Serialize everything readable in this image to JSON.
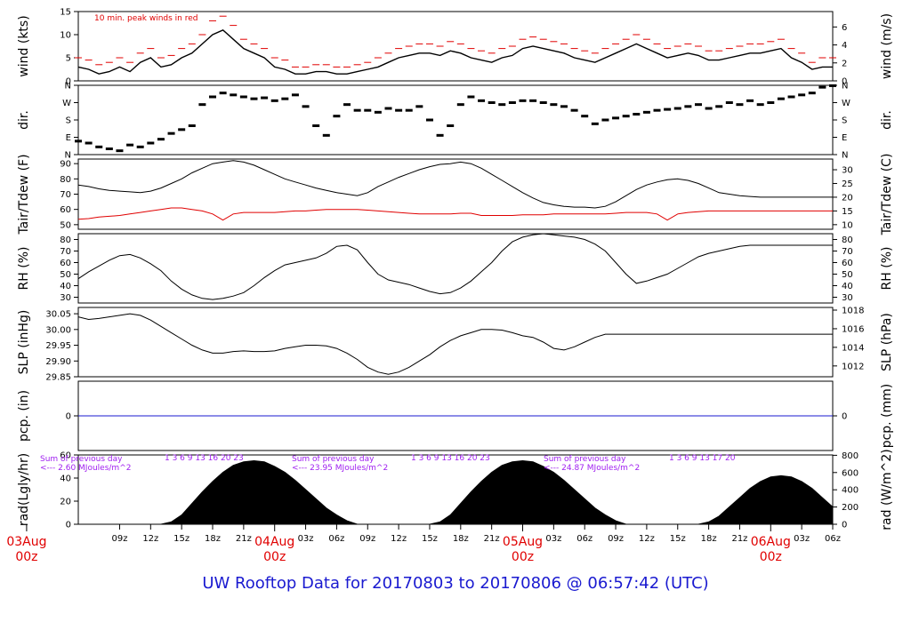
{
  "title": "UW Rooftop Data for 20170803  to  20170806 @ 06:57:42  (UTC)",
  "colors": {
    "trace": "#000000",
    "peak": "#e00000",
    "dew": "#e00000",
    "precip": "#1a1ad0",
    "rad_note": "#a020f0",
    "footer": "#1a1ad0",
    "date": "#e00000"
  },
  "x_axis": {
    "start_hour": 5,
    "end_hour": 78,
    "ticks": [
      "09z",
      "12z",
      "15z",
      "18z",
      "21z",
      "03z",
      "06z",
      "09z",
      "12z",
      "15z",
      "18z",
      "21z",
      "03z",
      "06z",
      "09z",
      "12z",
      "15z",
      "18z",
      "21z",
      "03z",
      "06z"
    ],
    "day_labels": [
      {
        "date": "03Aug",
        "zulu": "00z"
      },
      {
        "date": "04Aug",
        "zulu": "00z"
      },
      {
        "date": "05Aug",
        "zulu": "00z"
      },
      {
        "date": "06Aug",
        "zulu": "00z"
      }
    ]
  },
  "chart_data": [
    {
      "type": "line",
      "panel": "wind",
      "ylabel": "wind (kts)",
      "ylabel_right": "wind (m/s)",
      "ylim": [
        0,
        15
      ],
      "yticks": [
        "0",
        "5",
        "10",
        "15"
      ],
      "yticks_right": [
        "0",
        "2",
        "4",
        "6"
      ],
      "annotation": "10 min. peak winds in red",
      "x": [
        5,
        6,
        7,
        8,
        9,
        10,
        11,
        12,
        13,
        14,
        15,
        16,
        17,
        18,
        19,
        20,
        21,
        22,
        23,
        24,
        25,
        26,
        27,
        28,
        29,
        30,
        31,
        32,
        33,
        34,
        35,
        36,
        37,
        38,
        39,
        40,
        41,
        42,
        43,
        44,
        45,
        46,
        47,
        48,
        49,
        50,
        51,
        52,
        53,
        54,
        55,
        56,
        57,
        58,
        59,
        60,
        61,
        62,
        63,
        64,
        65,
        66,
        67,
        68,
        69,
        70,
        71,
        72,
        73,
        74,
        75,
        76,
        77,
        78
      ],
      "series": [
        {
          "name": "wind",
          "values": [
            3,
            2.5,
            1.5,
            2,
            3,
            2,
            4,
            5,
            3,
            3.5,
            5,
            6,
            8,
            10,
            11,
            9,
            7,
            6,
            5,
            3,
            2.5,
            1.5,
            1.5,
            2,
            2,
            1.5,
            1.5,
            2,
            2.5,
            3,
            4,
            5,
            5.5,
            6,
            6,
            5.5,
            6.5,
            6,
            5,
            4.5,
            4,
            5,
            5.5,
            7,
            7.5,
            7,
            6.5,
            6,
            5,
            4.5,
            4,
            5,
            6,
            7,
            8,
            7,
            6,
            5,
            5.5,
            6,
            5.5,
            4.5,
            4.5,
            5,
            5.5,
            6,
            6,
            6.5,
            7,
            5,
            4,
            2.5,
            3,
            3
          ]
        },
        {
          "name": "10 min. peak winds in red",
          "values": [
            5,
            4.5,
            3.5,
            4,
            5,
            4,
            6,
            7,
            5,
            5.5,
            7,
            8,
            10,
            13,
            14,
            12,
            9,
            8,
            7,
            5,
            4.5,
            3,
            3,
            3.5,
            3.5,
            3,
            3,
            3.5,
            4,
            5,
            6,
            7,
            7.5,
            8,
            8,
            7.5,
            8.5,
            8,
            7,
            6.5,
            6,
            7,
            7.5,
            9,
            9.5,
            9,
            8.5,
            8,
            7,
            6.5,
            6,
            7,
            8,
            9,
            10,
            9,
            8,
            7,
            7.5,
            8,
            7.5,
            6.5,
            6.5,
            7,
            7.5,
            8,
            8,
            8.5,
            9,
            7,
            6,
            4,
            5,
            5
          ]
        }
      ]
    },
    {
      "type": "scatter",
      "panel": "dir",
      "ylabel": "dir.",
      "ylabel_right": "dir.",
      "ylim": [
        0,
        360
      ],
      "yticks": [
        "N",
        "E",
        "S",
        "W",
        "N"
      ],
      "yticks_right": [
        "N",
        "E",
        "S",
        "W",
        "N"
      ],
      "x": [
        5,
        6,
        7,
        8,
        9,
        10,
        11,
        12,
        13,
        14,
        15,
        16,
        17,
        18,
        19,
        20,
        21,
        22,
        23,
        24,
        25,
        26,
        27,
        28,
        29,
        30,
        31,
        32,
        33,
        34,
        35,
        36,
        37,
        38,
        39,
        40,
        41,
        42,
        43,
        44,
        45,
        46,
        47,
        48,
        49,
        50,
        51,
        52,
        53,
        54,
        55,
        56,
        57,
        58,
        59,
        60,
        61,
        62,
        63,
        64,
        65,
        66,
        67,
        68,
        69,
        70,
        71,
        72,
        73,
        74,
        75,
        76,
        77,
        78
      ],
      "values": [
        70,
        60,
        40,
        30,
        20,
        50,
        40,
        60,
        80,
        110,
        130,
        150,
        260,
        300,
        320,
        310,
        300,
        290,
        295,
        280,
        290,
        310,
        250,
        150,
        100,
        200,
        260,
        230,
        230,
        220,
        240,
        230,
        230,
        250,
        180,
        100,
        150,
        260,
        300,
        280,
        270,
        260,
        270,
        280,
        280,
        270,
        260,
        250,
        230,
        200,
        160,
        180,
        190,
        200,
        210,
        220,
        230,
        235,
        240,
        250,
        260,
        240,
        250,
        270,
        260,
        280,
        260,
        270,
        290,
        300,
        310,
        320,
        350,
        358
      ]
    },
    {
      "type": "line",
      "panel": "temp",
      "ylabel": "Tair/Tdew (F)",
      "ylabel_right": "Tair/Tdew (C)",
      "ylim": [
        47,
        93
      ],
      "yticks": [
        "50",
        "60",
        "70",
        "80",
        "90"
      ],
      "yticks_right": [
        "10",
        "15",
        "20",
        "25",
        "30"
      ],
      "x": [
        5,
        6,
        7,
        8,
        9,
        10,
        11,
        12,
        13,
        14,
        15,
        16,
        17,
        18,
        19,
        20,
        21,
        22,
        23,
        24,
        25,
        26,
        27,
        28,
        29,
        30,
        31,
        32,
        33,
        34,
        35,
        36,
        37,
        38,
        39,
        40,
        41,
        42,
        43,
        44,
        45,
        46,
        47,
        48,
        49,
        50,
        51,
        52,
        53,
        54,
        55,
        56,
        57,
        58,
        59,
        60,
        61,
        62,
        63,
        64,
        65,
        66,
        67,
        68,
        69,
        70,
        71,
        72,
        73,
        74,
        75,
        76,
        77,
        78
      ],
      "series": [
        {
          "name": "Tair",
          "values": [
            76,
            75,
            73.5,
            72.5,
            72,
            71.5,
            71,
            72,
            74,
            77,
            80,
            84,
            87,
            90,
            91,
            92,
            91,
            89,
            86,
            83,
            80,
            78,
            76,
            74,
            72.5,
            71,
            70,
            69,
            71,
            75,
            78,
            81,
            83.5,
            86,
            88,
            89.5,
            90,
            91,
            90,
            87,
            83,
            79,
            75,
            71,
            67.5,
            64.5,
            63,
            62,
            61.5,
            61.5,
            61,
            62,
            65,
            69,
            73,
            76,
            78,
            79.5,
            80,
            79,
            77,
            74,
            71,
            70,
            69,
            68.5,
            68,
            68,
            68,
            68,
            68,
            68,
            68,
            68
          ]
        },
        {
          "name": "Tdew",
          "values": [
            53.5,
            54,
            55,
            55.5,
            56,
            57,
            58,
            59,
            60,
            61,
            61,
            60,
            59,
            57,
            53,
            57,
            58,
            58,
            58,
            58,
            58.5,
            59,
            59,
            59.5,
            60,
            60,
            60,
            60,
            59.5,
            59,
            58.5,
            58,
            57.5,
            57,
            57,
            57,
            57,
            57.5,
            57.5,
            56,
            56,
            56,
            56,
            56.5,
            56.5,
            56.5,
            57,
            57,
            57,
            57,
            57,
            57,
            57.5,
            58,
            58,
            58,
            57,
            53,
            57,
            58,
            58.5,
            59,
            59,
            59,
            59,
            59,
            59,
            59,
            59,
            59,
            59,
            59,
            59,
            59
          ]
        }
      ]
    },
    {
      "type": "line",
      "panel": "rh",
      "ylabel": "RH (%)",
      "ylabel_right": "RH (%)",
      "ylim": [
        25,
        85
      ],
      "yticks": [
        "30",
        "40",
        "50",
        "60",
        "70",
        "80"
      ],
      "yticks_right": [
        "30",
        "40",
        "50",
        "60",
        "70",
        "80"
      ],
      "x": [
        5,
        6,
        7,
        8,
        9,
        10,
        11,
        12,
        13,
        14,
        15,
        16,
        17,
        18,
        19,
        20,
        21,
        22,
        23,
        24,
        25,
        26,
        27,
        28,
        29,
        30,
        31,
        32,
        33,
        34,
        35,
        36,
        37,
        38,
        39,
        40,
        41,
        42,
        43,
        44,
        45,
        46,
        47,
        48,
        49,
        50,
        51,
        52,
        53,
        54,
        55,
        56,
        57,
        58,
        59,
        60,
        61,
        62,
        63,
        64,
        65,
        66,
        67,
        68,
        69,
        70,
        71,
        72,
        73,
        74,
        75,
        76,
        77,
        78
      ],
      "values": [
        46,
        52,
        57,
        62,
        66,
        67,
        64,
        59,
        53,
        44,
        37,
        32,
        29,
        28,
        29,
        31,
        34,
        40,
        47,
        53,
        58,
        60,
        62,
        64,
        68,
        74,
        75,
        71,
        60,
        50,
        45,
        43,
        41,
        38,
        35,
        33,
        34,
        38,
        44,
        52,
        60,
        70,
        78,
        82,
        84,
        85,
        84,
        83,
        82,
        80,
        76,
        70,
        60,
        50,
        42,
        44,
        47,
        50,
        55,
        60,
        65,
        68,
        70,
        72,
        74,
        75,
        75,
        75,
        75,
        75,
        75,
        75,
        75,
        75
      ]
    },
    {
      "type": "line",
      "panel": "slp",
      "ylabel": "SLP (inHg)",
      "ylabel_right": "SLP (hPa)",
      "ylim": [
        29.85,
        30.07
      ],
      "yticks": [
        "29.85",
        "29.90",
        "29.95",
        "30.00",
        "30.05"
      ],
      "yticks_right": [
        "1012",
        "1014",
        "1016",
        "1018"
      ],
      "x": [
        5,
        6,
        7,
        8,
        9,
        10,
        11,
        12,
        13,
        14,
        15,
        16,
        17,
        18,
        19,
        20,
        21,
        22,
        23,
        24,
        25,
        26,
        27,
        28,
        29,
        30,
        31,
        32,
        33,
        34,
        35,
        36,
        37,
        38,
        39,
        40,
        41,
        42,
        43,
        44,
        45,
        46,
        47,
        48,
        49,
        50,
        51,
        52,
        53,
        54,
        55,
        56,
        57,
        58,
        59,
        60,
        61,
        62,
        63,
        64,
        65,
        66,
        67,
        68,
        69,
        70,
        71,
        72,
        73,
        74,
        75,
        76,
        77,
        78
      ],
      "values": [
        30.04,
        30.032,
        30.035,
        30.04,
        30.045,
        30.05,
        30.045,
        30.03,
        30.01,
        29.99,
        29.97,
        29.95,
        29.935,
        29.925,
        29.925,
        29.93,
        29.932,
        29.93,
        29.93,
        29.932,
        29.94,
        29.945,
        29.95,
        29.95,
        29.948,
        29.94,
        29.925,
        29.905,
        29.88,
        29.865,
        29.858,
        29.865,
        29.88,
        29.9,
        29.92,
        29.945,
        29.965,
        29.98,
        29.99,
        30.0,
        30.0,
        29.998,
        29.99,
        29.98,
        29.975,
        29.96,
        29.94,
        29.935,
        29.945,
        29.96,
        29.975,
        29.985,
        29.985,
        29.985,
        29.985,
        29.985,
        29.985,
        29.985,
        29.985,
        29.985,
        29.985,
        29.985,
        29.985,
        29.985,
        29.985,
        29.985,
        29.985,
        29.985,
        29.985,
        29.985,
        29.985,
        29.985,
        29.985,
        29.985
      ]
    },
    {
      "type": "line",
      "panel": "precip",
      "ylabel": "pcp. (in)",
      "ylabel_right": "pcp. (mm)",
      "ylim": [
        -1,
        1
      ],
      "yticks": [
        "0"
      ],
      "yticks_right": [
        "0"
      ],
      "x": [
        5,
        78
      ],
      "values": [
        0,
        0
      ]
    },
    {
      "type": "area",
      "panel": "rad",
      "ylabel": "rad(Lgly/hr)",
      "ylabel_right": "rad (W/m^2)",
      "ylim": [
        0,
        60
      ],
      "yticks": [
        "0",
        "20",
        "40",
        "60"
      ],
      "yticks_right": [
        "0",
        "200",
        "400",
        "600",
        "800"
      ],
      "annotations": [
        {
          "line1": "Sum of previous day",
          "line2": "<--- 2.60 MJoules/m^2",
          "hours": "1  3  6  9  13  16  20  23"
        },
        {
          "line1": "Sum of previous day",
          "line2": "<--- 23.95 MJoules/m^2",
          "hours": "1  3  6  9  13  16  20  23"
        },
        {
          "line1": "Sum of previous day",
          "line2": "<--- 24.87 MJoules/m^2",
          "hours": "1  3  6  9  13  17  20"
        }
      ],
      "x": [
        5,
        6,
        7,
        8,
        9,
        10,
        11,
        12,
        13,
        14,
        15,
        16,
        17,
        18,
        19,
        20,
        21,
        22,
        23,
        24,
        25,
        26,
        27,
        28,
        29,
        30,
        31,
        32,
        33,
        34,
        35,
        36,
        37,
        38,
        39,
        40,
        41,
        42,
        43,
        44,
        45,
        46,
        47,
        48,
        49,
        50,
        51,
        52,
        53,
        54,
        55,
        56,
        57,
        58,
        59,
        60,
        61,
        62,
        63,
        64,
        65,
        66,
        67,
        68,
        69,
        70,
        71,
        72,
        73,
        74,
        75,
        76,
        77,
        78
      ],
      "values": [
        0,
        0,
        0,
        0,
        0,
        0,
        0,
        0,
        0,
        2,
        8,
        18,
        28,
        37,
        45,
        51,
        54,
        55,
        54,
        50,
        45,
        38,
        30,
        22,
        14,
        8,
        3,
        0,
        0,
        0,
        0,
        0,
        0,
        0,
        0,
        2,
        8,
        18,
        28,
        37,
        45,
        51,
        54,
        55,
        54,
        50,
        45,
        38,
        30,
        22,
        14,
        8,
        3,
        0,
        0,
        0,
        0,
        0,
        0,
        0,
        0,
        2,
        7,
        15,
        23,
        31,
        37,
        41,
        42,
        41,
        37,
        31,
        23,
        15
      ]
    }
  ]
}
